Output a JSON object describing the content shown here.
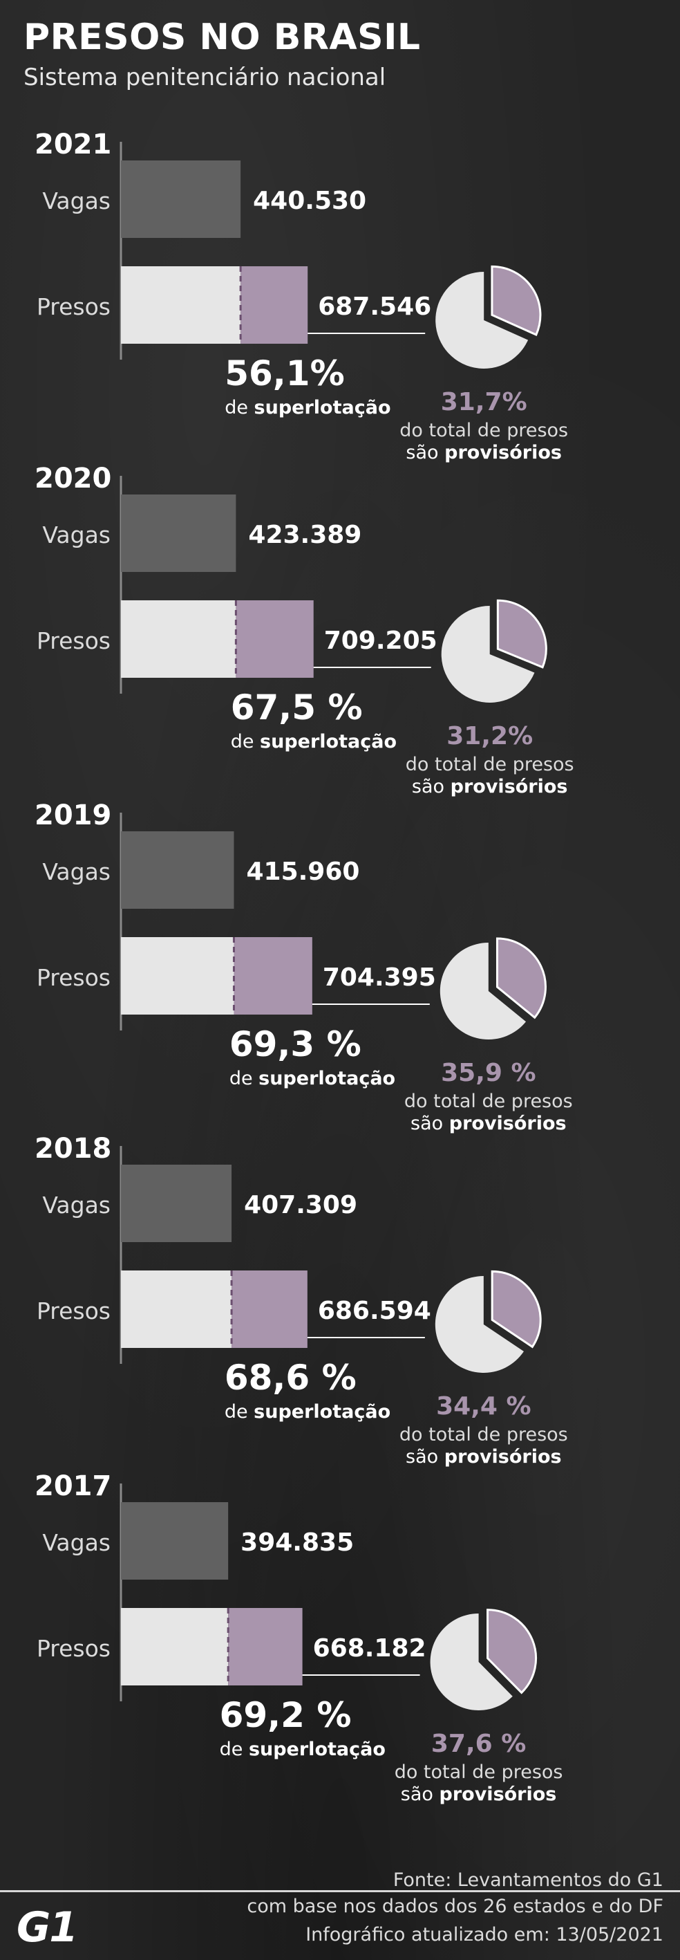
{
  "title": "PRESOS NO BRASIL",
  "subtitle": "Sistema penitenciário nacional",
  "colors": {
    "vagas_bar": "#616161",
    "presos_bar": "#e6e6e6",
    "excess_bar": "#a995ad",
    "pie_main": "#e6e6e6",
    "pie_slice": "#a995ad",
    "pie_pct_text": "#a995ad",
    "axis": "#8a8a8a",
    "text": "#ffffff"
  },
  "labels": {
    "vagas": "Vagas",
    "presos": "Presos",
    "superlotacao_prefix": "de",
    "superlotacao_word": "superlotação",
    "provisorios_line1": "do total de presos",
    "provisorios_prefix": "são",
    "provisorios_word": "provisórios"
  },
  "chart_data": {
    "type": "bar",
    "categories": [
      "2021",
      "2020",
      "2019",
      "2018",
      "2017"
    ],
    "series": [
      {
        "name": "Vagas",
        "values": [
          440530,
          423389,
          415960,
          407309,
          394835
        ],
        "labels": [
          "440.530",
          "423.389",
          "415.960",
          "407.309",
          "394.835"
        ]
      },
      {
        "name": "Presos",
        "values": [
          687546,
          709205,
          704395,
          686594,
          668182
        ],
        "labels": [
          "687.546",
          "709.205",
          "704.395",
          "686.594",
          "668.182"
        ]
      }
    ],
    "superlotacao": [
      56.1,
      67.5,
      69.3,
      68.6,
      69.2
    ],
    "superlotacao_labels": [
      "56,1%",
      "67,5 %",
      "69,3 %",
      "68,6 %",
      "69,2 %"
    ],
    "provisorios_pct": [
      31.7,
      31.2,
      35.9,
      34.4,
      37.6
    ],
    "provisorios_labels": [
      "31,7%",
      "31,2%",
      "35,9 %",
      "34,4 %",
      "37,6 %"
    ]
  },
  "footer": {
    "source_line1": "Fonte: Levantamentos do G1",
    "source_line2": "com base nos dados dos 26 estados e do DF",
    "logo": "G1",
    "updated": "Infográfico atualizado em: 13/05/2021"
  }
}
